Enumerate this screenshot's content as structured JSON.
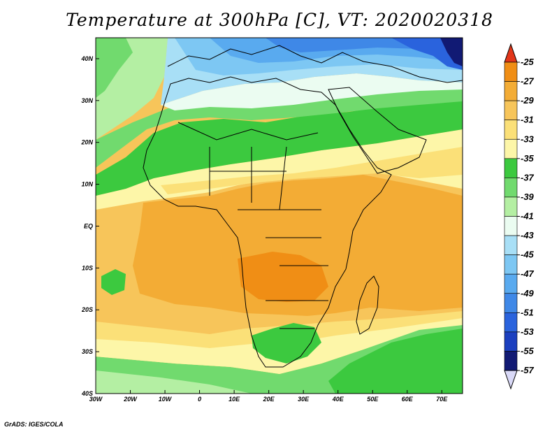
{
  "title": "Temperature at 300hPa [C], VT: 2020020318",
  "credit": "GrADS: IGES/COLA",
  "map": {
    "lon_range": [
      -30,
      76
    ],
    "lat_range": [
      -40,
      45
    ],
    "lon_ticks": [
      "30W",
      "20W",
      "10W",
      "0",
      "10E",
      "20E",
      "30E",
      "40E",
      "50E",
      "60E",
      "70E"
    ],
    "lat_ticks": [
      "40S",
      "30S",
      "20S",
      "10S",
      "EQ",
      "10N",
      "20N",
      "30N",
      "40N"
    ]
  },
  "colorbar": {
    "labels": [
      "-25",
      "-27",
      "-29",
      "-31",
      "-33",
      "-35",
      "-37",
      "-39",
      "-41",
      "-43",
      "-45",
      "-47",
      "-49",
      "-51",
      "-53",
      "-55",
      "-57"
    ],
    "colors": [
      "#e55a10",
      "#f08e15",
      "#f3ac35",
      "#f7c55a",
      "#fbe078",
      "#fdf6a8",
      "#3cc93f",
      "#71da6e",
      "#b4efa3",
      "#ebfcf1",
      "#a8dff6",
      "#7dc7f3",
      "#59aaef",
      "#3f88e7",
      "#2a63dd",
      "#1b3fbf",
      "#111a74"
    ],
    "top_arrow_color": "#e2361a",
    "bottom_arrow_color": "#d9d9f7"
  }
}
